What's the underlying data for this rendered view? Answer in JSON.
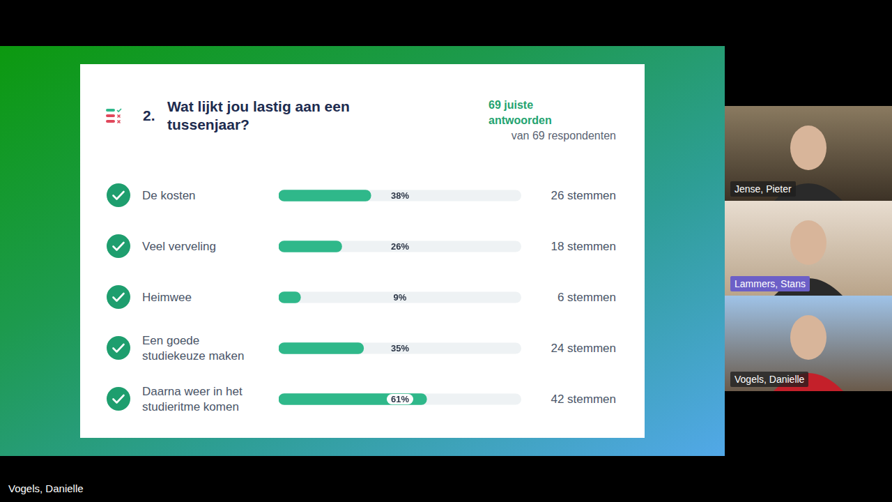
{
  "chart_data": {
    "type": "bar",
    "orientation": "horizontal",
    "question_number": "2.",
    "title": "Wat lijkt jou lastig aan een tussenjaar?",
    "correct_answers": "69 juiste antwoorden",
    "respondents": "van 69 respondenten",
    "categories": [
      "De kosten",
      "Veel verveling",
      "Heimwee",
      "Een goede studiekeuze maken",
      "Daarna weer in het studieritme komen"
    ],
    "values": [
      38,
      26,
      9,
      35,
      61
    ],
    "value_labels": [
      "38%",
      "26%",
      "9%",
      "35%",
      "61%"
    ],
    "vote_labels": [
      "26 stemmen",
      "18 stemmen",
      "6 stemmen",
      "24 stemmen",
      "42 stemmen"
    ],
    "color": "#2fb88a",
    "xlim": [
      0,
      100
    ],
    "data_labels": true,
    "tick_labels": false,
    "grid": false
  },
  "participants": [
    "Jense, Pieter",
    "Lammers, Stans",
    "Vogels, Danielle"
  ],
  "caption": "Vogels, Danielle"
}
